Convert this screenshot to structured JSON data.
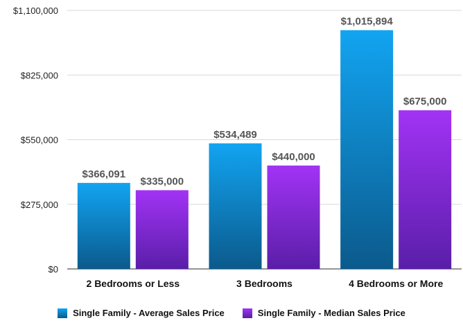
{
  "chart_data": {
    "type": "bar",
    "categories": [
      "2 Bedrooms or Less",
      "3 Bedrooms",
      "4 Bedrooms or More"
    ],
    "series": [
      {
        "name": "Single Family - Average Sales Price",
        "values": [
          366091,
          534489,
          1015894
        ],
        "labels": [
          "$366,091",
          "$534,489",
          "$1,015,894"
        ],
        "color_top": "#12a4f1",
        "color_bottom": "#0b5a8c"
      },
      {
        "name": "Single Family - Median Sales Price",
        "values": [
          335000,
          440000,
          675000
        ],
        "labels": [
          "$335,000",
          "$440,000",
          "$675,000"
        ],
        "color_top": "#a233f5",
        "color_bottom": "#5a1ea8"
      }
    ],
    "ylim": [
      0,
      1100000
    ],
    "yticks": [
      0,
      275000,
      550000,
      825000,
      1100000
    ],
    "ytick_labels": [
      "$0",
      "$275,000",
      "$550,000",
      "$825,000",
      "$1,100,000"
    ],
    "grid": true,
    "legend_position": "bottom"
  }
}
